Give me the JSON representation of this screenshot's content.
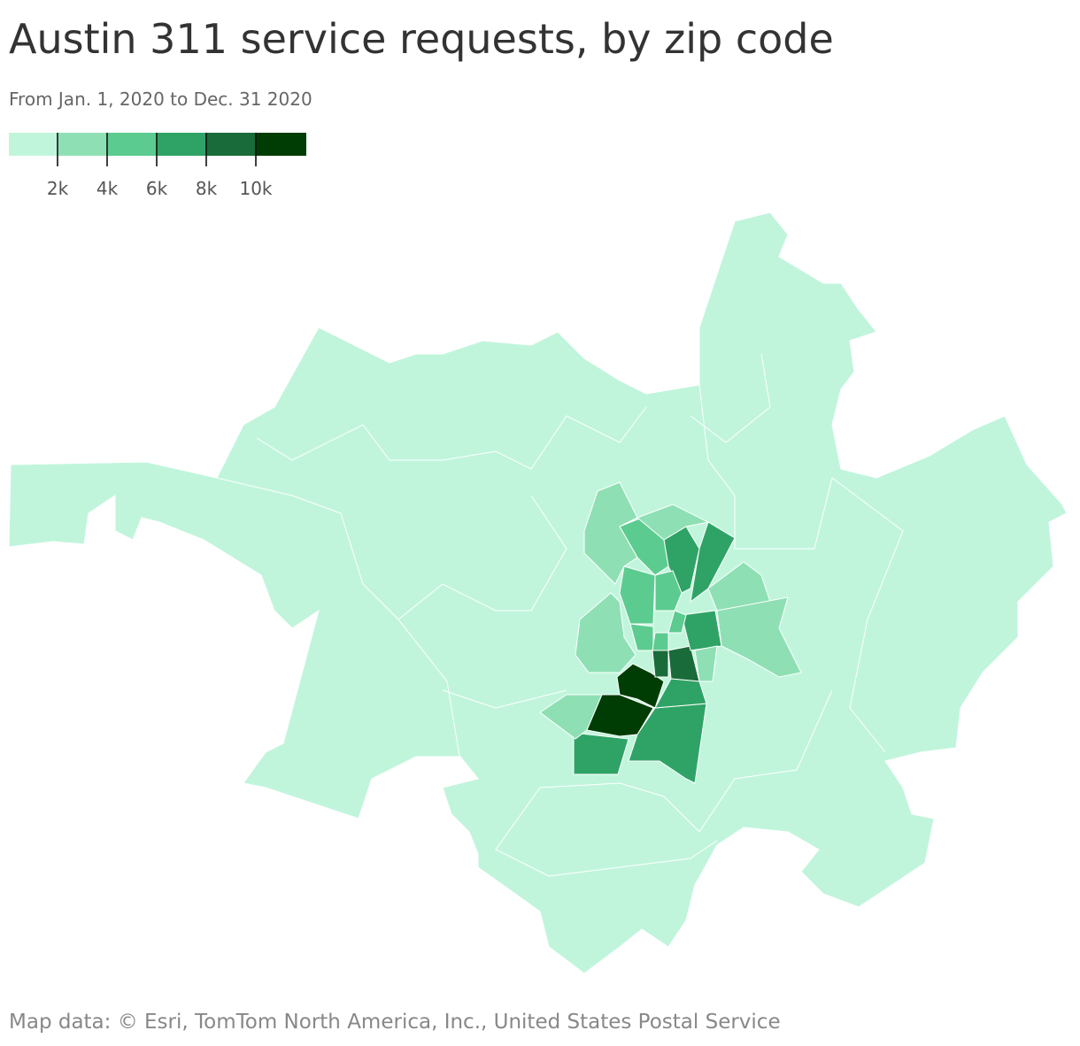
{
  "chart_data": {
    "type": "choropleth",
    "title": "Austin 311 service requests, by zip code",
    "subtitle": "From Jan. 1, 2020 to Dec. 31 2020",
    "legend_colors": [
      "#c0f5dc",
      "#8ee0b4",
      "#5ccb8f",
      "#2fa366",
      "#1a6b3a",
      "#003d04"
    ],
    "ticks": [
      {
        "value": 2000,
        "label": "2k"
      },
      {
        "value": 4000,
        "label": "4k"
      },
      {
        "value": 6000,
        "label": "6k"
      },
      {
        "value": 8000,
        "label": "8k"
      },
      {
        "value": 10000,
        "label": "10k"
      }
    ],
    "values": [
      11000,
      11500,
      9000,
      8500,
      7000,
      7000,
      7000,
      7000,
      7000,
      7000,
      5000,
      5000,
      5000,
      5000,
      5000,
      5000,
      3000,
      3000,
      3000,
      3000,
      3000,
      3000,
      3000
    ],
    "source": "Map data: © Esri, TomTom North America, Inc., United States Postal Service"
  }
}
